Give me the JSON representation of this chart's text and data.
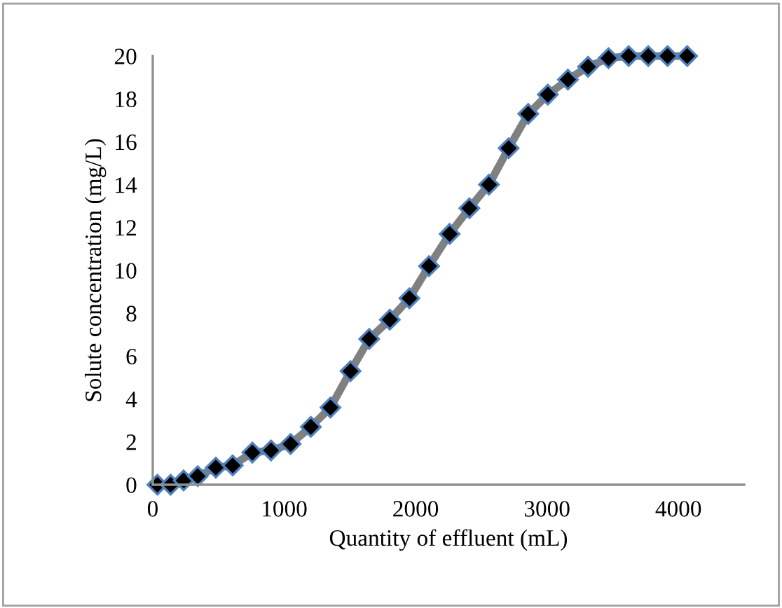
{
  "chart_data": {
    "type": "line",
    "xlabel": "Quantity of effluent (mL)",
    "ylabel": "Solute concentration (mg/L)",
    "x": [
      35,
      136,
      235,
      342,
      480,
      608,
      758,
      900,
      1049,
      1203,
      1352,
      1505,
      1647,
      1804,
      1953,
      2102,
      2259,
      2409,
      2558,
      2708,
      2857,
      3006,
      3159,
      3312,
      3468,
      3621,
      3770,
      3917,
      4066
    ],
    "series": [
      {
        "color": "#808080",
        "values": [
          0,
          0,
          0.2,
          0.4,
          0.8,
          0.9,
          1.5,
          1.6,
          1.9,
          2.7,
          3.6,
          5.3,
          6.8,
          7.7,
          8.7,
          10.2,
          11.7,
          12.9,
          14.0,
          15.7,
          17.3,
          18.2,
          18.9,
          19.5,
          19.9,
          20,
          20,
          20,
          20
        ]
      }
    ],
    "xlim": [
      0,
      4500
    ],
    "xticks": [
      0,
      1000,
      2000,
      3000,
      4000
    ],
    "ylim": [
      0,
      20
    ],
    "yticks": [
      0,
      2,
      4,
      6,
      8,
      10,
      12,
      14,
      16,
      18,
      20
    ],
    "grid": false,
    "legend": false,
    "marker": "diamond",
    "line_style": "solid"
  }
}
